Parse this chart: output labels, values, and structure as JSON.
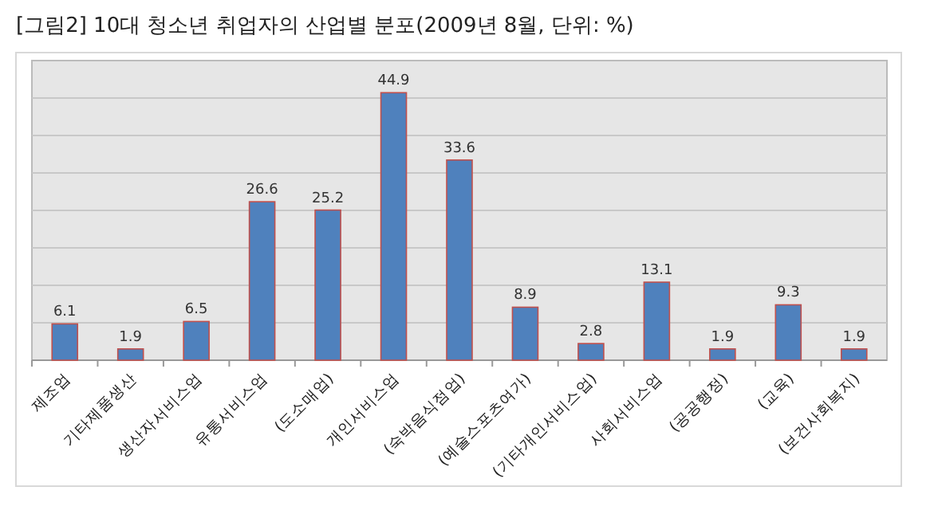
{
  "chart_data": {
    "type": "bar",
    "title": "[그림2] 10대 청소년 취업자의 산업별 분포(2009년 8월, 단위: %)",
    "categories": [
      "제조업",
      "기타제품생산",
      "생산자서비스업",
      "유통서비스업",
      "(도소매업)",
      "개인서비스업",
      "(숙박음식점업)",
      "(예술스포츠여가)",
      "(기타개인서비스업)",
      "사회서비스업",
      "(공공행정)",
      "(교육)",
      "(보건사회복지)"
    ],
    "values": [
      6.1,
      1.9,
      6.5,
      26.6,
      25.2,
      44.9,
      33.6,
      8.9,
      2.8,
      13.1,
      1.9,
      9.3,
      1.9
    ],
    "color": "#4f81bd",
    "data_labels": true,
    "grid": "y"
  }
}
